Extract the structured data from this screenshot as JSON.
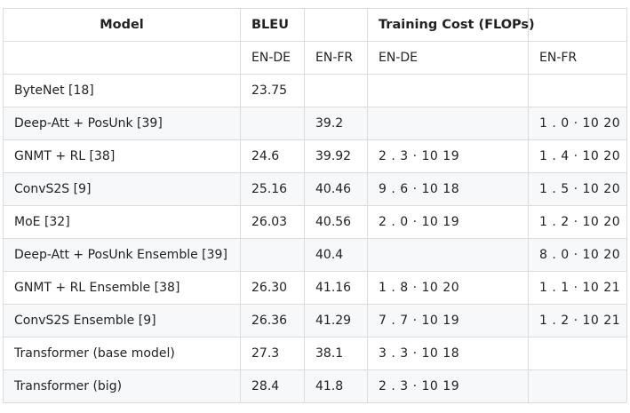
{
  "header": {
    "model": "Model",
    "bleu": "BLEU",
    "cost": "Training Cost (FLOPs)"
  },
  "subheader": {
    "model": "",
    "bleu_en_de": "EN-DE",
    "bleu_en_fr": "EN-FR",
    "cost_en_de": "EN-DE",
    "cost_en_fr": "EN-FR"
  },
  "rows": [
    {
      "model": "ByteNet [18]",
      "bleu_en_de": "23.75",
      "bleu_en_fr": "",
      "cost_en_de": "",
      "cost_en_fr": ""
    },
    {
      "model": "Deep-Att + PosUnk [39]",
      "bleu_en_de": "",
      "bleu_en_fr": "39.2",
      "cost_en_de": "",
      "cost_en_fr": "1 . 0 · 10 20"
    },
    {
      "model": "GNMT + RL [38]",
      "bleu_en_de": "24.6",
      "bleu_en_fr": "39.92",
      "cost_en_de": "2 . 3 · 10 19",
      "cost_en_fr": "1 . 4 · 10 20"
    },
    {
      "model": "ConvS2S [9]",
      "bleu_en_de": "25.16",
      "bleu_en_fr": "40.46",
      "cost_en_de": "9 . 6 · 10 18",
      "cost_en_fr": "1 . 5 · 10 20"
    },
    {
      "model": "MoE [32]",
      "bleu_en_de": "26.03",
      "bleu_en_fr": "40.56",
      "cost_en_de": "2 . 0 · 10 19",
      "cost_en_fr": "1 . 2 · 10 20"
    },
    {
      "model": "Deep-Att + PosUnk Ensemble [39]",
      "bleu_en_de": "",
      "bleu_en_fr": "40.4",
      "cost_en_de": "",
      "cost_en_fr": "8 . 0 · 10 20"
    },
    {
      "model": "GNMT + RL Ensemble [38]",
      "bleu_en_de": "26.30",
      "bleu_en_fr": "41.16",
      "cost_en_de": "1 . 8 · 10 20",
      "cost_en_fr": "1 . 1 · 10 21"
    },
    {
      "model": "ConvS2S Ensemble [9]",
      "bleu_en_de": "26.36",
      "bleu_en_fr": "41.29",
      "cost_en_de": "7 . 7 · 10 19",
      "cost_en_fr": "1 . 2 · 10 21"
    },
    {
      "model": "Transformer (base model)",
      "bleu_en_de": "27.3",
      "bleu_en_fr": "38.1",
      "cost_en_de": "3 . 3 · 10 18",
      "cost_en_fr": ""
    },
    {
      "model": "Transformer (big)",
      "bleu_en_de": "28.4",
      "bleu_en_fr": "41.8",
      "cost_en_de": "2 . 3 · 10 19",
      "cost_en_fr": ""
    }
  ]
}
